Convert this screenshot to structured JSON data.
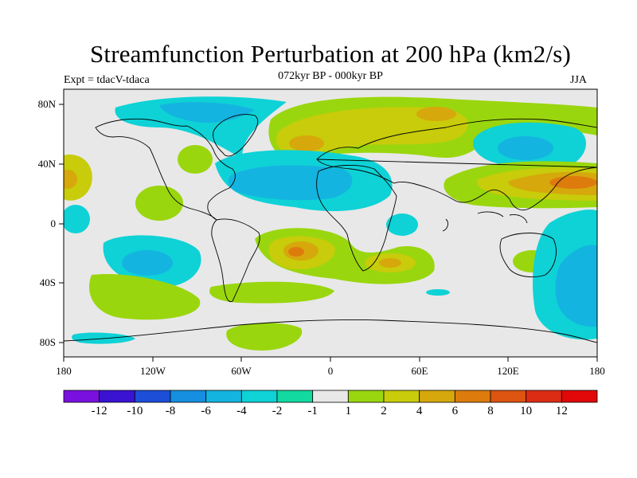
{
  "title": "Streamfunction Perturbation at 200 hPa (km2/s)",
  "subtitle": "072kyr BP - 000kyr BP",
  "experiment": "Expt = tdacV-tdaca",
  "season": "JJA",
  "lat_labels": [
    "80N",
    "40N",
    "0",
    "40S",
    "80S"
  ],
  "lon_labels": [
    "180",
    "120W",
    "60W",
    "0",
    "60E",
    "120E",
    "180"
  ],
  "colorbar": {
    "labels": [
      "-12",
      "-10",
      "-8",
      "-6",
      "-4",
      "-2",
      "-1",
      "1",
      "2",
      "4",
      "6",
      "8",
      "10",
      "12"
    ],
    "colors": [
      "#7a10e0",
      "#3a12d2",
      "#1c4ed8",
      "#168fe0",
      "#14b4e0",
      "#0ed2d6",
      "#12d9a0",
      "#e8e8e8",
      "#9ad60e",
      "#c8cc0a",
      "#d6a80c",
      "#dd7c0c",
      "#dc5410",
      "#dc2c14",
      "#e00808"
    ]
  },
  "colors": {
    "neutral": "#e8e8e8",
    "pos1": "#9ad60e",
    "pos2": "#c8cc0a",
    "pos4": "#d6a80c",
    "pos6": "#dd7c0c",
    "neg1": "#12d9a0",
    "neg2": "#0ed2d6",
    "neg4": "#14b4e0"
  }
}
